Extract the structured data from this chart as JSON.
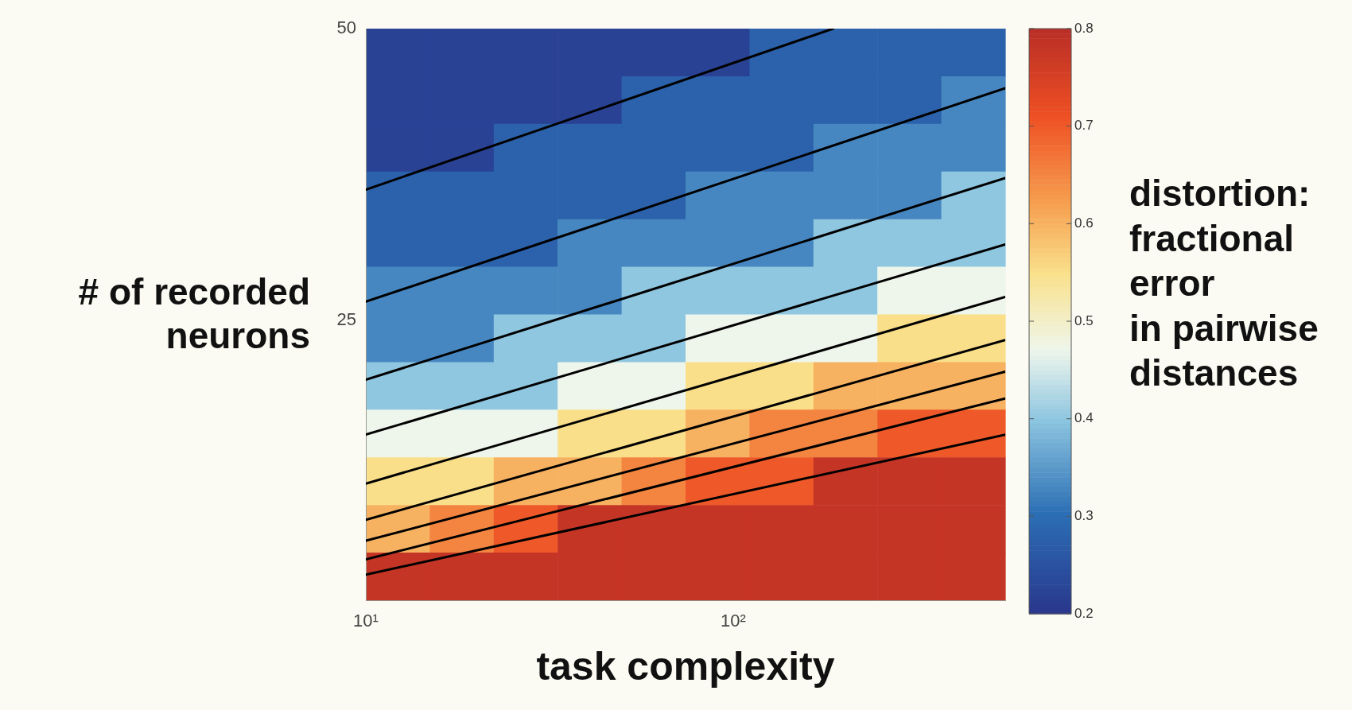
{
  "chart_data": [
    {
      "type": "heatmap",
      "clabel": "distortion:\nfractional\nerror\nin pairwise\ndistances",
      "clim": [
        0.2,
        0.8
      ],
      "cticks": [
        0.2,
        0.3,
        0.4,
        0.5,
        0.6,
        0.7,
        0.8
      ],
      "categories": [
        null,
        null,
        null,
        null,
        null,
        null,
        null,
        null,
        null,
        null
      ],
      "y_categories": [
        null,
        null,
        null,
        null,
        null,
        null,
        null,
        null,
        null,
        null,
        null,
        null
      ],
      "cells": [
        [
          0.22,
          0.22,
          0.22,
          0.22,
          0.22,
          0.22,
          0.28,
          0.28,
          0.28,
          0.28
        ],
        [
          0.22,
          0.22,
          0.22,
          0.22,
          0.28,
          0.28,
          0.28,
          0.28,
          0.28,
          0.33
        ],
        [
          0.22,
          0.22,
          0.28,
          0.28,
          0.28,
          0.28,
          0.28,
          0.33,
          0.33,
          0.33
        ],
        [
          0.28,
          0.28,
          0.28,
          0.28,
          0.28,
          0.33,
          0.33,
          0.33,
          0.33,
          0.4
        ],
        [
          0.28,
          0.28,
          0.28,
          0.33,
          0.33,
          0.33,
          0.33,
          0.4,
          0.4,
          0.4
        ],
        [
          0.33,
          0.33,
          0.33,
          0.33,
          0.4,
          0.4,
          0.4,
          0.4,
          0.47,
          0.47
        ],
        [
          0.33,
          0.33,
          0.4,
          0.4,
          0.4,
          0.47,
          0.47,
          0.47,
          0.55,
          0.55
        ],
        [
          0.4,
          0.4,
          0.4,
          0.47,
          0.47,
          0.55,
          0.55,
          0.6,
          0.6,
          0.6
        ],
        [
          0.47,
          0.47,
          0.47,
          0.55,
          0.55,
          0.6,
          0.65,
          0.65,
          0.7,
          0.7
        ],
        [
          0.55,
          0.55,
          0.6,
          0.6,
          0.65,
          0.7,
          0.7,
          0.78,
          0.78,
          0.78
        ],
        [
          0.6,
          0.65,
          0.7,
          0.78,
          0.78,
          0.78,
          0.78,
          0.78,
          0.78,
          0.78
        ],
        [
          0.78,
          0.78,
          0.78,
          0.78,
          0.78,
          0.78,
          0.78,
          0.78,
          0.78,
          0.78
        ]
      ]
    },
    {
      "type": "line",
      "xlabel": "task complexity",
      "ylabel": "# of recorded\nneurons",
      "log": "x",
      "xlim": [
        10,
        550
      ],
      "xticks": [
        {
          "value": 10,
          "label": "10¹"
        },
        {
          "value": 100,
          "label": "10²"
        }
      ],
      "ylim": [
        1,
        50
      ],
      "yticks": [
        25,
        50
      ],
      "series": [
        {
          "type": "line",
          "color": "#000000",
          "x": [
            10,
            187
          ],
          "values": [
            36.2,
            50
          ]
        },
        {
          "type": "line",
          "color": "#000000",
          "x": [
            10,
            550
          ],
          "values": [
            26.6,
            44.9
          ]
        },
        {
          "type": "line",
          "color": "#000000",
          "x": [
            10,
            550
          ],
          "values": [
            19.9,
            37.2
          ]
        },
        {
          "type": "line",
          "color": "#000000",
          "x": [
            10,
            550
          ],
          "values": [
            15.2,
            31.5
          ]
        },
        {
          "type": "line",
          "color": "#000000",
          "x": [
            10,
            550
          ],
          "values": [
            11.0,
            27.0
          ]
        },
        {
          "type": "line",
          "color": "#000000",
          "x": [
            10,
            550
          ],
          "values": [
            7.9,
            23.3
          ]
        },
        {
          "type": "line",
          "color": "#000000",
          "x": [
            10,
            550
          ],
          "values": [
            6.1,
            20.6
          ]
        },
        {
          "type": "line",
          "color": "#000000",
          "x": [
            10,
            550
          ],
          "values": [
            4.5,
            18.3
          ]
        },
        {
          "type": "line",
          "color": "#000000",
          "x": [
            10,
            550
          ],
          "values": [
            3.2,
            15.2
          ]
        }
      ]
    }
  ]
}
